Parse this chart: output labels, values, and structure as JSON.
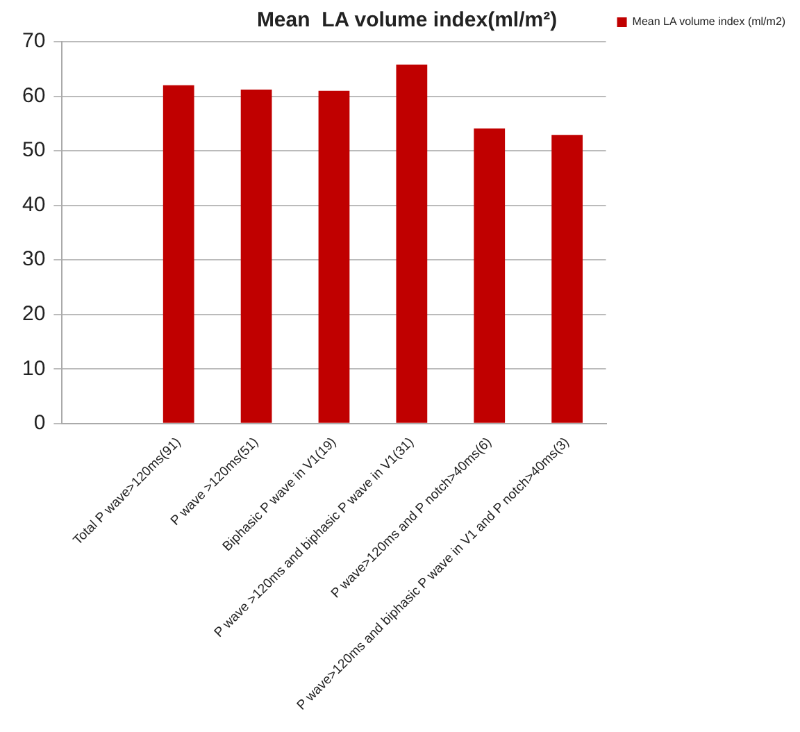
{
  "chart_data": {
    "type": "bar",
    "title": "Mean  LA volume index(ml/m²)",
    "categories": [
      null,
      "Total P wave>120ms(91)",
      "P wave >120ms(51)",
      "Biphasic P wave in V1(19)",
      "P wave >120ms and biphasic P wave in V1(31)",
      "P wave>120ms and P notch>40ms(6)",
      "P wave>120ms and biphasic P wave in V1 and P notch>40ms(3)"
    ],
    "series": [
      {
        "name": "Mean LA volume index (ml/m2)",
        "color": "#c00000",
        "values": [
          null,
          62.0,
          61.2,
          61.0,
          65.8,
          54.1,
          52.9
        ]
      }
    ],
    "ylim": [
      0,
      70
    ],
    "yticks": [
      0,
      10,
      20,
      30,
      40,
      50,
      60,
      70
    ],
    "grid": "y",
    "legend": "top right"
  }
}
